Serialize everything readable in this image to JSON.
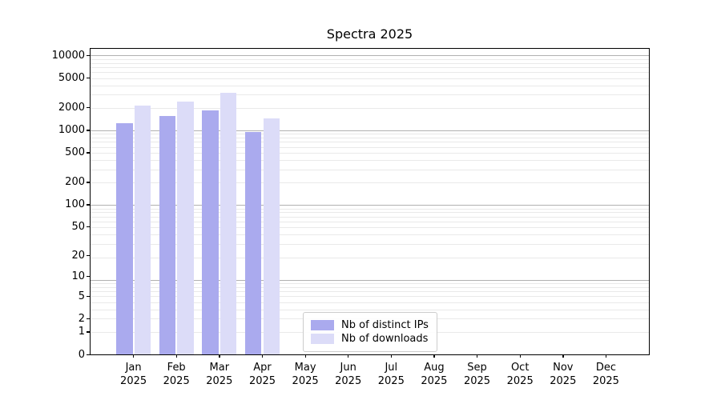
{
  "title": "Spectra 2025",
  "chart_data": {
    "type": "bar",
    "title": "Spectra 2025",
    "categories": [
      "Jan 2025",
      "Feb 2025",
      "Mar 2025",
      "Apr 2025",
      "May 2025",
      "Jun 2025",
      "Jul 2025",
      "Aug 2025",
      "Sep 2025",
      "Oct 2025",
      "Nov 2025",
      "Dec 2025"
    ],
    "series": [
      {
        "name": "Nb of distinct IPs",
        "color": "#aaaaee",
        "values": [
          1250,
          1540,
          1850,
          950,
          0,
          0,
          0,
          0,
          0,
          0,
          0,
          0
        ]
      },
      {
        "name": "Nb of downloads",
        "color": "#dcdcf8",
        "values": [
          2150,
          2440,
          3150,
          1450,
          0,
          0,
          0,
          0,
          0,
          0,
          0,
          0
        ]
      }
    ],
    "xlabel": "",
    "ylabel": "",
    "yticks": [
      0,
      1,
      2,
      5,
      10,
      20,
      50,
      100,
      200,
      500,
      1000,
      2000,
      5000,
      10000
    ],
    "yscale": "log1p",
    "ylim": [
      0,
      12300
    ],
    "grid": true,
    "legend_position": "lower center",
    "colors": {
      "grid_major": "#b0b0b0",
      "grid_minor": "#e9e9e9",
      "axis": "#000000",
      "text": "#000000",
      "background": "#ffffff"
    }
  }
}
